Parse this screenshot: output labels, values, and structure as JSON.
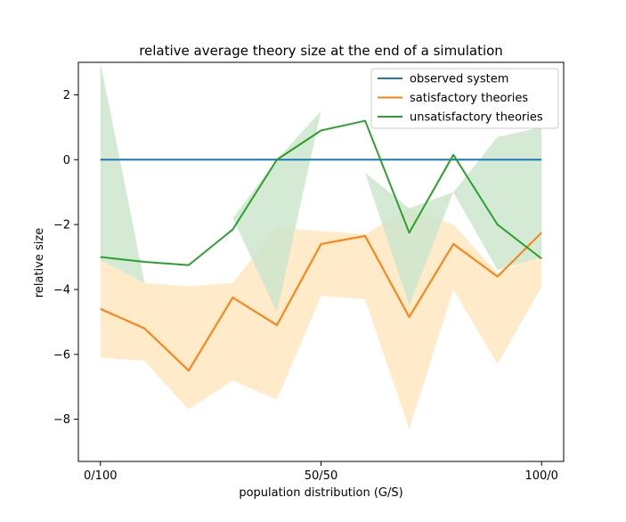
{
  "chart_data": {
    "type": "line",
    "title": "relative average theory size at the end of a simulation",
    "xlabel": "population distribution (G/S)",
    "ylabel": "relative size",
    "x": [
      0,
      10,
      20,
      30,
      40,
      50,
      60,
      70,
      80,
      90,
      100
    ],
    "xlim": [
      -5,
      105
    ],
    "ylim": [
      -9.3,
      3.0
    ],
    "x_ticks": [
      {
        "value": 0,
        "label": "0/100"
      },
      {
        "value": 50,
        "label": "50/50"
      },
      {
        "value": 100,
        "label": "100/0"
      }
    ],
    "y_ticks": [
      {
        "value": 2,
        "label": "2"
      },
      {
        "value": 0,
        "label": "0"
      },
      {
        "value": -2,
        "label": "−2"
      },
      {
        "value": -4,
        "label": "−4"
      },
      {
        "value": -6,
        "label": "−6"
      },
      {
        "value": -8,
        "label": "−8"
      }
    ],
    "grid": false,
    "legend_position": "top-right",
    "series": [
      {
        "name": "observed system",
        "color": "#1f77b4",
        "values": [
          0,
          0,
          0,
          0,
          0,
          0,
          0,
          0,
          0,
          0,
          0
        ]
      },
      {
        "name": "satisfactory theories",
        "color": "#ff7f0e",
        "band_color": "#ffe6c0",
        "values": [
          -4.6,
          -5.2,
          -6.5,
          -4.25,
          -5.1,
          -2.6,
          -2.35,
          -4.85,
          -2.6,
          -3.6,
          -2.25
        ],
        "band_low": [
          -6.1,
          -6.2,
          -7.7,
          -6.8,
          -7.4,
          -4.2,
          -4.3,
          -8.3,
          -4.0,
          -6.3,
          -3.9
        ],
        "band_high": [
          -3.1,
          -3.8,
          -3.9,
          -3.8,
          -2.1,
          -2.2,
          -2.3,
          -1.5,
          -2.0,
          -3.5,
          -2.9
        ]
      },
      {
        "name": "unsatisfactory theories",
        "color": "#2ca02c",
        "band_color": "#cde6cd",
        "values": [
          -3.0,
          -3.15,
          -3.25,
          -2.15,
          0.0,
          0.9,
          1.2,
          -2.25,
          0.15,
          -2.0,
          -3.05
        ],
        "band_low": [
          -3.1,
          -3.8,
          -3.8,
          -1.8,
          -4.7,
          1.5,
          -0.4,
          -4.5,
          -1.0,
          -3.4,
          -3.0
        ],
        "band_high": [
          3.0,
          -3.8,
          -3.8,
          -1.8,
          0.0,
          1.5,
          -0.4,
          -1.5,
          -1.0,
          0.7,
          1.0
        ]
      }
    ]
  }
}
